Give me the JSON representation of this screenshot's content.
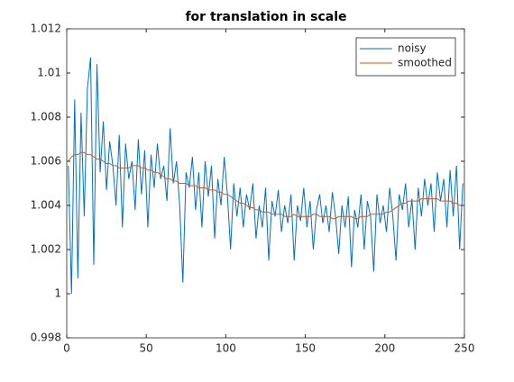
{
  "chart_data": {
    "type": "line",
    "title": "for translation in scale",
    "x": [
      1,
      3,
      5,
      7,
      9,
      11,
      13,
      15,
      17,
      19,
      21,
      23,
      25,
      27,
      29,
      31,
      33,
      35,
      37,
      39,
      41,
      43,
      45,
      47,
      49,
      51,
      53,
      55,
      57,
      59,
      61,
      63,
      65,
      67,
      69,
      71,
      73,
      75,
      77,
      79,
      81,
      83,
      85,
      87,
      89,
      91,
      93,
      95,
      97,
      99,
      101,
      103,
      105,
      107,
      109,
      111,
      113,
      115,
      117,
      119,
      121,
      123,
      125,
      127,
      129,
      131,
      133,
      135,
      137,
      139,
      141,
      143,
      145,
      147,
      149,
      151,
      153,
      155,
      157,
      159,
      161,
      163,
      165,
      167,
      169,
      171,
      173,
      175,
      177,
      179,
      181,
      183,
      185,
      187,
      189,
      191,
      193,
      195,
      197,
      199,
      201,
      203,
      205,
      207,
      209,
      211,
      213,
      215,
      217,
      219,
      221,
      223,
      225,
      227,
      229,
      231,
      233,
      235,
      237,
      239,
      241,
      243,
      245,
      247,
      249
    ],
    "series": [
      {
        "name": "noisy",
        "color": "#0072bd",
        "values": [
          1.0058,
          1.0,
          1.0088,
          1.0007,
          1.0082,
          1.0035,
          1.0093,
          1.0107,
          1.0013,
          1.0104,
          1.0055,
          1.0078,
          1.0047,
          1.0069,
          1.0058,
          1.004,
          1.0072,
          1.003,
          1.0068,
          1.0052,
          1.006,
          1.0038,
          1.007,
          1.0045,
          1.0065,
          1.003,
          1.0063,
          1.0048,
          1.0068,
          1.0052,
          1.0058,
          1.0042,
          1.0075,
          1.005,
          1.006,
          1.004,
          1.0005,
          1.0055,
          1.0048,
          1.0062,
          1.0038,
          1.0055,
          1.003,
          1.006,
          1.0044,
          1.0058,
          1.0025,
          1.0052,
          1.004,
          1.0062,
          1.0045,
          1.002,
          1.005,
          1.0035,
          1.0048,
          1.003,
          1.0045,
          1.0038,
          1.005,
          1.0025,
          1.004,
          1.003,
          1.0048,
          1.0015,
          1.0042,
          1.0035,
          1.0047,
          1.0028,
          1.004,
          1.0032,
          1.0045,
          1.0015,
          1.004,
          1.0033,
          1.0048,
          1.003,
          1.0042,
          1.002,
          1.0038,
          1.0045,
          1.0032,
          1.004,
          1.0028,
          1.0046,
          1.0035,
          1.0018,
          1.004,
          1.003,
          1.0044,
          1.0012,
          1.0038,
          1.003,
          1.0045,
          1.002,
          1.0042,
          1.0035,
          1.001,
          1.0045,
          1.0032,
          1.004,
          1.0028,
          1.0048,
          1.0035,
          1.0015,
          1.0045,
          1.0038,
          1.005,
          1.003,
          1.0043,
          1.002,
          1.0048,
          1.0035,
          1.0052,
          1.004,
          1.005,
          1.0028,
          1.0055,
          1.0042,
          1.0052,
          1.003,
          1.0056,
          1.0035,
          1.0058,
          1.002,
          1.005
        ]
      },
      {
        "name": "smoothed",
        "color": "#d95319",
        "values": [
          1.006,
          1.0062,
          1.0063,
          1.0063,
          1.0064,
          1.0064,
          1.0063,
          1.0063,
          1.0062,
          1.0061,
          1.0061,
          1.006,
          1.0059,
          1.0059,
          1.0058,
          1.0058,
          1.0057,
          1.0057,
          1.0057,
          1.0057,
          1.0058,
          1.0058,
          1.0058,
          1.0057,
          1.0057,
          1.0056,
          1.0056,
          1.0055,
          1.0055,
          1.0054,
          1.0053,
          1.0052,
          1.0052,
          1.0051,
          1.0051,
          1.005,
          1.005,
          1.005,
          1.0049,
          1.0049,
          1.0049,
          1.0048,
          1.0048,
          1.0048,
          1.0047,
          1.0047,
          1.0047,
          1.0046,
          1.0046,
          1.0045,
          1.0045,
          1.0044,
          1.0043,
          1.0042,
          1.0041,
          1.0041,
          1.004,
          1.0039,
          1.0039,
          1.0038,
          1.0038,
          1.0037,
          1.0037,
          1.0037,
          1.0036,
          1.0036,
          1.0036,
          1.0036,
          1.0035,
          1.0035,
          1.0035,
          1.0036,
          1.0035,
          1.0035,
          1.0035,
          1.0035,
          1.0035,
          1.0036,
          1.0036,
          1.0035,
          1.0035,
          1.0035,
          1.0035,
          1.0034,
          1.0034,
          1.0035,
          1.0035,
          1.0035,
          1.0035,
          1.0035,
          1.0034,
          1.0034,
          1.0035,
          1.0035,
          1.0035,
          1.0036,
          1.0036,
          1.0036,
          1.0036,
          1.0036,
          1.0037,
          1.0037,
          1.0038,
          1.0039,
          1.004,
          1.0041,
          1.0041,
          1.0042,
          1.0042,
          1.0042,
          1.0042,
          1.0043,
          1.0043,
          1.0043,
          1.0043,
          1.0043,
          1.0043,
          1.0042,
          1.0042,
          1.0042,
          1.0042,
          1.0041,
          1.0041,
          1.004,
          1.004
        ]
      }
    ],
    "xlim": [
      0,
      250
    ],
    "xticks": [
      0,
      50,
      100,
      150,
      200,
      250
    ],
    "ylim": [
      0.998,
      1.012
    ],
    "yticks": [
      0.998,
      1,
      1.002,
      1.004,
      1.006,
      1.008,
      1.01,
      1.012
    ],
    "legend": "top-right"
  }
}
